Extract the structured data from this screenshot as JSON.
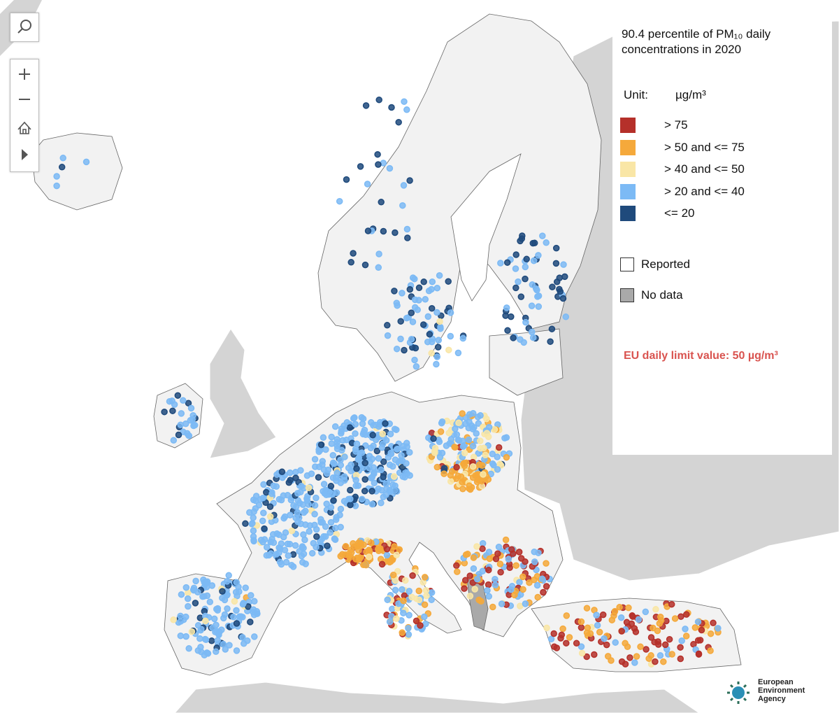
{
  "legend": {
    "title": "90.4 percentile of PM₁₀ daily concentrations in 2020",
    "unit_label": "Unit:",
    "unit": "µg/m³",
    "classes": [
      {
        "label": "> 75",
        "color": "#b5302a"
      },
      {
        "label": "> 50 and <= 75",
        "color": "#f5a93b"
      },
      {
        "label": "> 40 and <= 50",
        "color": "#f9e6a6"
      },
      {
        "label": "> 20 and <= 40",
        "color": "#7cbaf5"
      },
      {
        "label": "<= 20",
        "color": "#1f4a7c"
      }
    ],
    "reported": "Reported",
    "no_data": "No data",
    "limit_note": "EU daily limit value: 50 µg/m³"
  },
  "logo": {
    "lines": [
      "European",
      "Environment",
      "Agency"
    ]
  }
}
